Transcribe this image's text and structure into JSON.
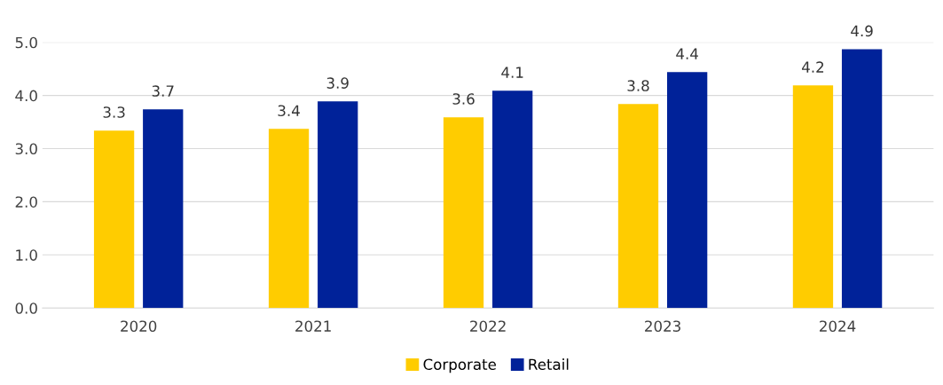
{
  "chart_data": {
    "type": "bar",
    "categories": [
      "2020",
      "2021",
      "2022",
      "2023",
      "2024"
    ],
    "series": [
      {
        "name": "Corporate",
        "color": "#ffcc00",
        "values": [
          3.34,
          3.37,
          3.59,
          3.84,
          4.19
        ],
        "value_labels": [
          "3.3",
          "3.4",
          "3.6",
          "3.8",
          "4.2"
        ]
      },
      {
        "name": "Retail",
        "color": "#002299",
        "values": [
          3.74,
          3.89,
          4.09,
          4.44,
          4.87
        ],
        "value_labels": [
          "3.7",
          "3.9",
          "4.1",
          "4.4",
          "4.9"
        ]
      }
    ],
    "ylim": [
      0,
      5
    ],
    "yticks": [
      {
        "value": 0,
        "label": "0.0"
      },
      {
        "value": 1,
        "label": "1.0"
      },
      {
        "value": 2,
        "label": "2.0"
      },
      {
        "value": 3,
        "label": "3.0"
      },
      {
        "value": 4,
        "label": "4.0"
      },
      {
        "value": 5,
        "label": "5.0"
      }
    ],
    "grid": "y",
    "legend": "bottom"
  }
}
